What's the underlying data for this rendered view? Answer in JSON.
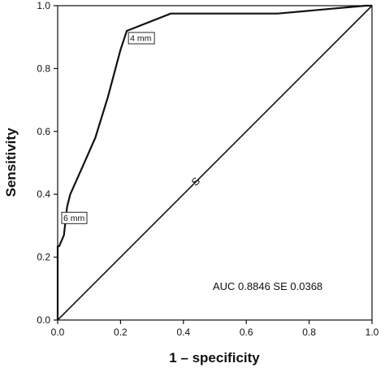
{
  "chart_data": {
    "type": "line",
    "title": "",
    "xlabel": "1 – specificity",
    "ylabel": "Sensitivity",
    "xlim": [
      0,
      1
    ],
    "ylim": [
      0,
      1
    ],
    "xticks": [
      "0.0",
      "0.2",
      "0.4",
      "0.6",
      "0.8",
      "1.0"
    ],
    "yticks": [
      "0.0",
      "0.2",
      "0.4",
      "0.6",
      "0.8",
      "1.0"
    ],
    "grid": false,
    "series": [
      {
        "x": [
          0.0,
          0.0,
          0.005,
          0.02,
          0.03,
          0.04,
          0.08,
          0.12,
          0.16,
          0.2,
          0.22,
          0.36,
          0.7,
          0.98,
          1.0
        ],
        "y": [
          0.0,
          0.235,
          0.235,
          0.27,
          0.36,
          0.4,
          0.49,
          0.58,
          0.71,
          0.86,
          0.92,
          0.975,
          0.975,
          1.0,
          1.0
        ]
      },
      {
        "x": [
          0,
          1
        ],
        "y": [
          0,
          1
        ],
        "label": "S"
      }
    ],
    "annotations": [
      {
        "text": "4 mm",
        "x": 0.22,
        "y": 0.92
      },
      {
        "text": "6 mm",
        "x": 0.0,
        "y": 0.33
      }
    ],
    "summary_text": "AUC 0.8846 SE 0.0368"
  }
}
